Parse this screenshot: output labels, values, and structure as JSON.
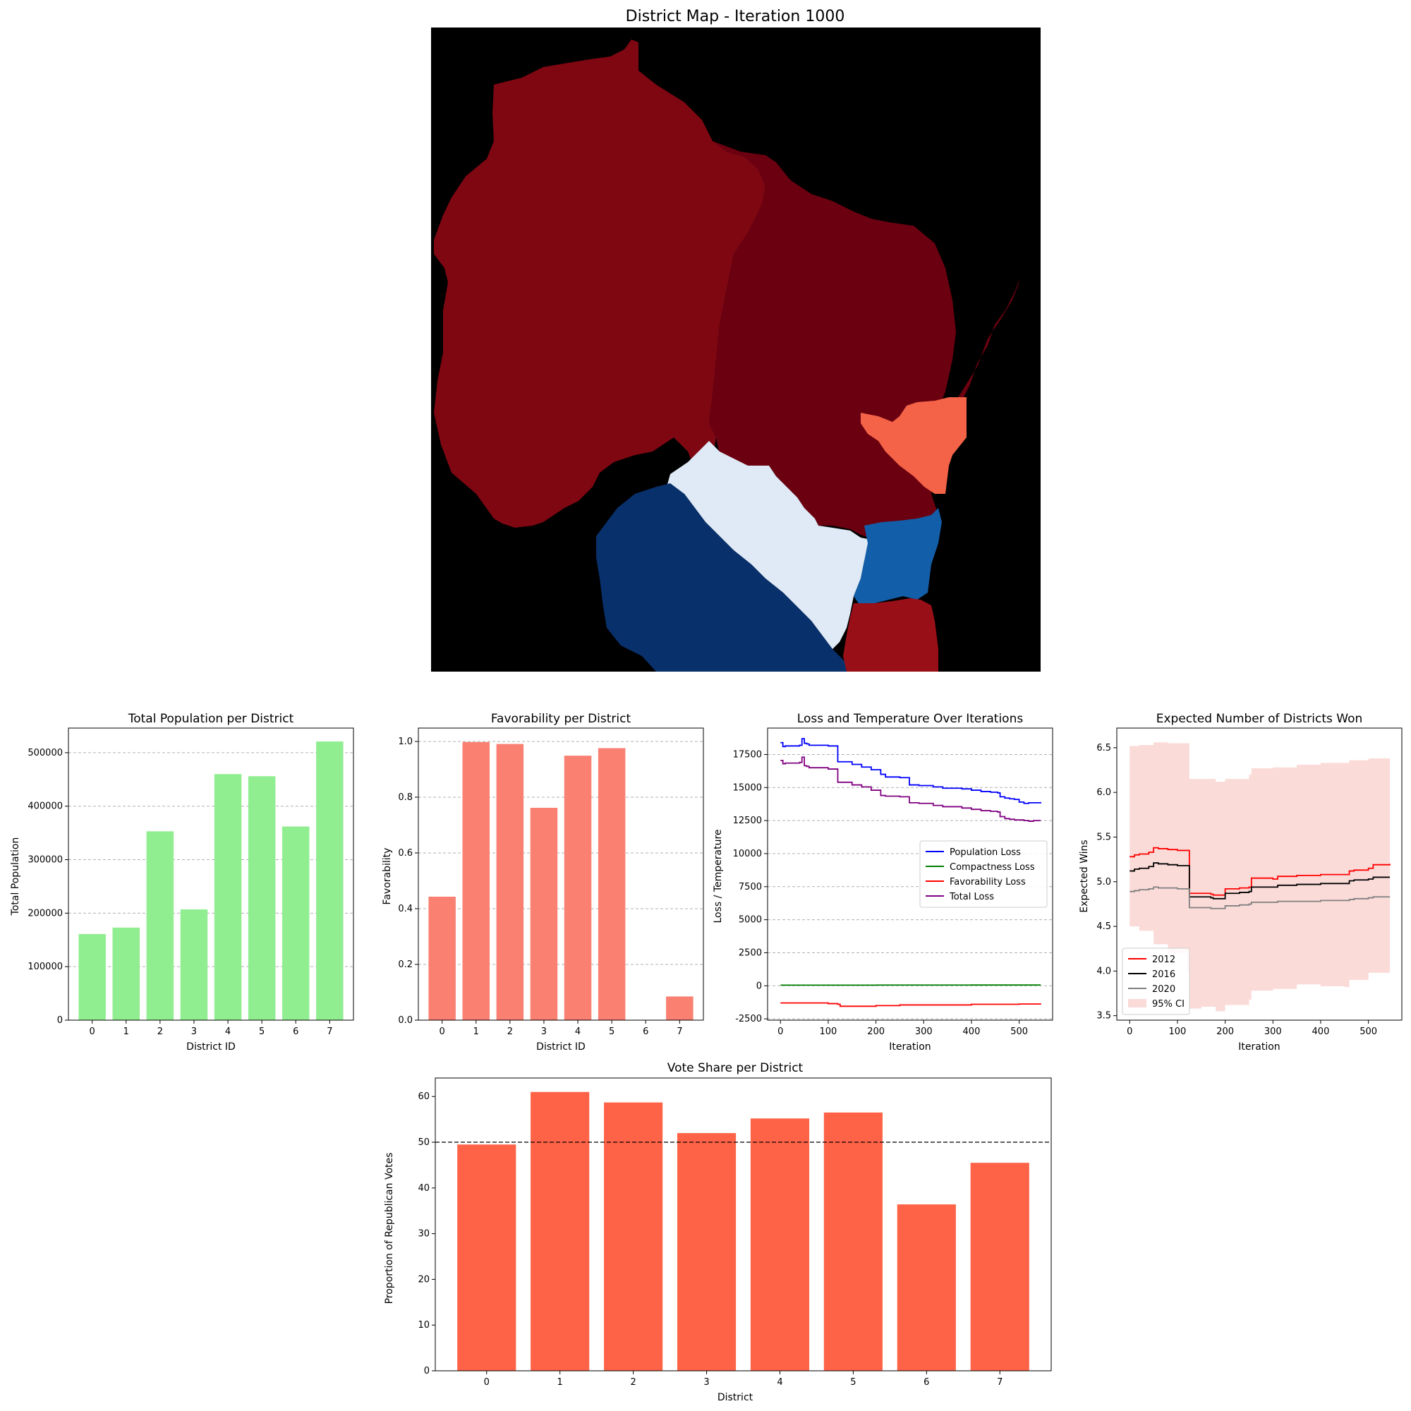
{
  "map": {
    "title": "District Map - Iteration 1000",
    "colors": {
      "background": "#000000",
      "north": "#7f0712",
      "east_central": "#6b0010",
      "green_bay": "#f46347",
      "madison_corridor": "#dfeaf6",
      "southwest": "#08306b",
      "milwaukee": "#135ea8",
      "southeast": "#990f18"
    }
  },
  "chart_data": [
    {
      "id": "population",
      "type": "bar",
      "title": "Total Population per District",
      "xlabel": "District ID",
      "ylabel": "Total Population",
      "categories": [
        "0",
        "1",
        "2",
        "3",
        "4",
        "5",
        "6",
        "7"
      ],
      "values": [
        161000,
        173000,
        353000,
        207000,
        460000,
        456000,
        362000,
        521000
      ],
      "ylim": [
        0,
        546000
      ],
      "yticks": [
        0,
        100000,
        200000,
        300000,
        400000,
        500000
      ],
      "grid": "y dashed",
      "color": "#90ee90"
    },
    {
      "id": "favorability",
      "type": "bar",
      "title": "Favorability per District",
      "xlabel": "District ID",
      "ylabel": "Favorability",
      "categories": [
        "0",
        "1",
        "2",
        "3",
        "4",
        "5",
        "6",
        "7"
      ],
      "values": [
        0.443,
        0.998,
        0.991,
        0.762,
        0.949,
        0.976,
        0.0,
        0.085
      ],
      "ylim": [
        0,
        1.048
      ],
      "yticks": [
        0.0,
        0.2,
        0.4,
        0.6,
        0.8,
        1.0
      ],
      "grid": "y dashed",
      "color": "#fa8072"
    },
    {
      "id": "loss",
      "type": "line",
      "title": "Loss and Temperature Over Iterations",
      "xlabel": "Iteration",
      "ylabel": "Loss / Temperature",
      "xlim": [
        -27,
        570
      ],
      "ylim": [
        -2600,
        19500
      ],
      "xticks": [
        0,
        100,
        200,
        300,
        400,
        500
      ],
      "yticks": [
        -2500,
        0,
        2500,
        5000,
        7500,
        10000,
        12500,
        15000,
        17500
      ],
      "grid": "y dashed",
      "legend": "center-right",
      "series": [
        {
          "name": "Population Loss",
          "color": "#0000ff",
          "x": [
            0,
            5,
            10,
            40,
            45,
            50,
            55,
            60,
            100,
            120,
            125,
            150,
            170,
            190,
            200,
            210,
            220,
            250,
            270,
            290,
            300,
            320,
            340,
            380,
            400,
            420,
            440,
            450,
            455,
            460,
            470,
            480,
            490,
            500,
            510,
            520,
            530,
            545
          ],
          "y": [
            18400,
            18100,
            18150,
            18200,
            18700,
            18350,
            18300,
            18200,
            18150,
            16950,
            16950,
            16750,
            16550,
            16350,
            16350,
            16000,
            15800,
            15750,
            15200,
            15150,
            15150,
            15050,
            14950,
            14900,
            14800,
            14700,
            14650,
            14650,
            14600,
            14300,
            14200,
            14150,
            14100,
            13900,
            13800,
            13850,
            13850,
            13900
          ]
        },
        {
          "name": "Compactness Loss",
          "color": "#008000",
          "x": [
            0,
            100,
            200,
            300,
            400,
            500,
            545
          ],
          "y": [
            50,
            50,
            55,
            55,
            60,
            60,
            60
          ]
        },
        {
          "name": "Favorability Loss",
          "color": "#ff0000",
          "x": [
            0,
            50,
            100,
            120,
            125,
            200,
            250,
            300,
            400,
            500,
            545
          ],
          "y": [
            -1300,
            -1300,
            -1350,
            -1400,
            -1550,
            -1500,
            -1450,
            -1450,
            -1400,
            -1380,
            -1350
          ]
        },
        {
          "name": "Total Loss",
          "color": "#800080",
          "x": [
            0,
            5,
            10,
            40,
            45,
            50,
            55,
            60,
            100,
            120,
            125,
            150,
            170,
            190,
            200,
            210,
            220,
            250,
            270,
            290,
            300,
            320,
            340,
            380,
            400,
            420,
            440,
            450,
            455,
            460,
            470,
            480,
            490,
            500,
            510,
            520,
            530,
            545
          ],
          "y": [
            17050,
            16800,
            16850,
            16900,
            17300,
            16650,
            16600,
            16500,
            16400,
            15400,
            15400,
            15200,
            15050,
            14800,
            14800,
            14400,
            14350,
            14300,
            13850,
            13800,
            13800,
            13650,
            13550,
            13450,
            13350,
            13250,
            13200,
            13200,
            13150,
            12800,
            12650,
            12600,
            12550,
            12550,
            12500,
            12450,
            12500,
            12500
          ]
        }
      ]
    },
    {
      "id": "expected",
      "type": "line",
      "title": "Expected Number of Districts Won",
      "xlabel": "Iteration",
      "ylabel": "Expected Wins",
      "xlim": [
        -27,
        570
      ],
      "ylim": [
        3.45,
        6.72
      ],
      "xticks": [
        0,
        100,
        200,
        300,
        400,
        500
      ],
      "yticks": [
        3.5,
        4.0,
        4.5,
        5.0,
        5.5,
        6.0,
        6.5
      ],
      "legend": "bottom-left",
      "band": {
        "name": "95% CI",
        "color": "#fadbd8",
        "x": [
          0,
          20,
          50,
          80,
          120,
          125,
          150,
          180,
          200,
          250,
          255,
          300,
          350,
          400,
          450,
          460,
          500,
          545
        ],
        "upper": [
          6.52,
          6.53,
          6.56,
          6.55,
          6.55,
          6.15,
          6.15,
          6.12,
          6.15,
          6.2,
          6.27,
          6.28,
          6.31,
          6.33,
          6.33,
          6.36,
          6.38,
          6.4
        ],
        "lower": [
          4.5,
          4.45,
          4.3,
          4.2,
          4.0,
          3.58,
          3.6,
          3.55,
          3.62,
          3.68,
          3.78,
          3.8,
          3.85,
          3.83,
          3.82,
          3.9,
          3.98,
          4.0
        ]
      },
      "series": [
        {
          "name": "2012",
          "color": "#ff0000",
          "x": [
            0,
            10,
            20,
            40,
            50,
            60,
            80,
            100,
            120,
            125,
            170,
            175,
            200,
            230,
            250,
            255,
            300,
            310,
            350,
            400,
            450,
            460,
            470,
            500,
            510,
            545
          ],
          "y": [
            5.28,
            5.3,
            5.31,
            5.33,
            5.38,
            5.37,
            5.36,
            5.35,
            5.35,
            4.87,
            4.86,
            4.85,
            4.92,
            4.93,
            4.94,
            5.04,
            5.03,
            5.06,
            5.07,
            5.08,
            5.08,
            5.12,
            5.13,
            5.15,
            5.19,
            5.2
          ]
        },
        {
          "name": "2016",
          "color": "#000000",
          "x": [
            0,
            10,
            20,
            40,
            50,
            60,
            80,
            100,
            120,
            125,
            170,
            175,
            200,
            230,
            250,
            255,
            300,
            310,
            350,
            400,
            450,
            460,
            470,
            500,
            510,
            545
          ],
          "y": [
            5.12,
            5.14,
            5.15,
            5.17,
            5.21,
            5.2,
            5.19,
            5.18,
            5.18,
            4.83,
            4.82,
            4.81,
            4.87,
            4.88,
            4.89,
            4.94,
            4.94,
            4.96,
            4.97,
            4.98,
            4.98,
            5.01,
            5.02,
            5.03,
            5.05,
            5.05
          ]
        },
        {
          "name": "2020",
          "color": "#808080",
          "x": [
            0,
            10,
            20,
            40,
            50,
            60,
            80,
            100,
            120,
            125,
            170,
            175,
            200,
            230,
            250,
            255,
            300,
            310,
            350,
            400,
            450,
            460,
            470,
            500,
            510,
            545
          ],
          "y": [
            4.89,
            4.9,
            4.91,
            4.92,
            4.94,
            4.93,
            4.93,
            4.92,
            4.92,
            4.71,
            4.7,
            4.7,
            4.73,
            4.74,
            4.75,
            4.77,
            4.77,
            4.78,
            4.78,
            4.79,
            4.79,
            4.8,
            4.81,
            4.82,
            4.83,
            4.83
          ]
        }
      ]
    },
    {
      "id": "vote",
      "type": "bar",
      "title": "Vote Share per District",
      "xlabel": "District",
      "ylabel": "Proportion of Republican Votes",
      "categories": [
        "0",
        "1",
        "2",
        "3",
        "4",
        "5",
        "6",
        "7"
      ],
      "values": [
        49.5,
        61.0,
        58.7,
        52.0,
        55.2,
        56.5,
        36.4,
        45.5
      ],
      "ylim": [
        0,
        64.05
      ],
      "yticks": [
        0,
        10,
        20,
        30,
        40,
        50,
        60
      ],
      "reference_line": 50,
      "color": "#ff6347"
    }
  ]
}
